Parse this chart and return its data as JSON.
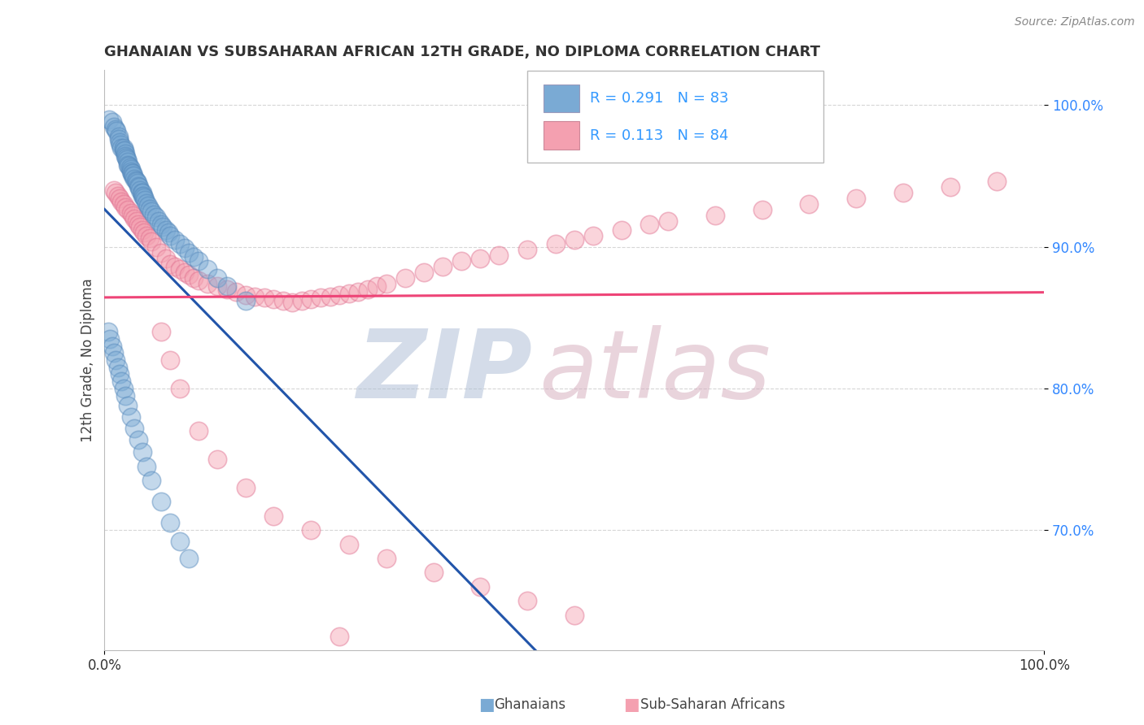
{
  "title": "GHANAIAN VS SUBSAHARAN AFRICAN 12TH GRADE, NO DIPLOMA CORRELATION CHART",
  "source_text": "Source: ZipAtlas.com",
  "ylabel": "12th Grade, No Diploma",
  "xmin": 0.0,
  "xmax": 1.0,
  "ymin": 0.615,
  "ymax": 1.025,
  "ytick_vals": [
    0.7,
    0.8,
    0.9,
    1.0
  ],
  "ytick_labels": [
    "70.0%",
    "80.0%",
    "90.0%",
    "100.0%"
  ],
  "ghanaian_color": "#7aaad4",
  "subsaharan_color": "#f4a0b0",
  "ghanaian_edge": "#5588bb",
  "subsaharan_edge": "#e07090",
  "ghanaian_line_color": "#2255aa",
  "subsaharan_line_color": "#ee4477",
  "legend_color": "#3399ff",
  "watermark_zip_color": "#aabbd4",
  "watermark_atlas_color": "#d4aabb",
  "ghanaian_x": [
    0.005,
    0.008,
    0.01,
    0.012,
    0.013,
    0.015,
    0.015,
    0.016,
    0.017,
    0.018,
    0.02,
    0.02,
    0.021,
    0.022,
    0.022,
    0.023,
    0.024,
    0.025,
    0.025,
    0.026,
    0.027,
    0.028,
    0.028,
    0.029,
    0.03,
    0.03,
    0.031,
    0.032,
    0.033,
    0.034,
    0.035,
    0.036,
    0.037,
    0.038,
    0.039,
    0.04,
    0.04,
    0.041,
    0.042,
    0.043,
    0.045,
    0.046,
    0.048,
    0.05,
    0.052,
    0.055,
    0.058,
    0.06,
    0.062,
    0.065,
    0.068,
    0.07,
    0.075,
    0.08,
    0.085,
    0.09,
    0.095,
    0.1,
    0.11,
    0.12,
    0.13,
    0.15,
    0.004,
    0.006,
    0.008,
    0.01,
    0.012,
    0.014,
    0.016,
    0.018,
    0.02,
    0.022,
    0.025,
    0.028,
    0.032,
    0.036,
    0.04,
    0.045,
    0.05,
    0.06,
    0.07,
    0.08,
    0.09
  ],
  "ghanaian_y": [
    0.99,
    0.988,
    0.985,
    0.983,
    0.982,
    0.978,
    0.976,
    0.974,
    0.972,
    0.97,
    0.968,
    0.97,
    0.968,
    0.966,
    0.964,
    0.963,
    0.962,
    0.96,
    0.958,
    0.957,
    0.956,
    0.955,
    0.953,
    0.952,
    0.95,
    0.952,
    0.95,
    0.948,
    0.947,
    0.946,
    0.945,
    0.943,
    0.942,
    0.94,
    0.938,
    0.936,
    0.938,
    0.936,
    0.935,
    0.933,
    0.931,
    0.929,
    0.927,
    0.925,
    0.923,
    0.921,
    0.918,
    0.916,
    0.914,
    0.912,
    0.91,
    0.908,
    0.905,
    0.902,
    0.899,
    0.896,
    0.893,
    0.89,
    0.884,
    0.878,
    0.872,
    0.862,
    0.84,
    0.835,
    0.83,
    0.825,
    0.82,
    0.815,
    0.81,
    0.805,
    0.8,
    0.795,
    0.788,
    0.78,
    0.772,
    0.764,
    0.755,
    0.745,
    0.735,
    0.72,
    0.705,
    0.692,
    0.68
  ],
  "subsaharan_x": [
    0.01,
    0.012,
    0.014,
    0.016,
    0.018,
    0.02,
    0.022,
    0.025,
    0.028,
    0.03,
    0.032,
    0.034,
    0.036,
    0.038,
    0.04,
    0.042,
    0.045,
    0.048,
    0.05,
    0.055,
    0.06,
    0.065,
    0.07,
    0.075,
    0.08,
    0.085,
    0.09,
    0.095,
    0.1,
    0.11,
    0.12,
    0.13,
    0.14,
    0.15,
    0.16,
    0.17,
    0.18,
    0.19,
    0.2,
    0.21,
    0.22,
    0.23,
    0.24,
    0.25,
    0.26,
    0.27,
    0.28,
    0.29,
    0.3,
    0.32,
    0.34,
    0.36,
    0.38,
    0.4,
    0.42,
    0.45,
    0.48,
    0.5,
    0.52,
    0.55,
    0.58,
    0.6,
    0.65,
    0.7,
    0.75,
    0.8,
    0.85,
    0.9,
    0.95,
    0.06,
    0.07,
    0.08,
    0.1,
    0.12,
    0.15,
    0.18,
    0.22,
    0.26,
    0.3,
    0.35,
    0.4,
    0.45,
    0.5,
    0.25
  ],
  "subsaharan_y": [
    0.94,
    0.938,
    0.936,
    0.934,
    0.932,
    0.93,
    0.928,
    0.926,
    0.924,
    0.922,
    0.92,
    0.918,
    0.916,
    0.914,
    0.912,
    0.91,
    0.908,
    0.906,
    0.904,
    0.9,
    0.896,
    0.892,
    0.888,
    0.886,
    0.884,
    0.882,
    0.88,
    0.878,
    0.876,
    0.874,
    0.872,
    0.87,
    0.868,
    0.866,
    0.865,
    0.864,
    0.863,
    0.862,
    0.861,
    0.862,
    0.863,
    0.864,
    0.865,
    0.866,
    0.867,
    0.868,
    0.87,
    0.872,
    0.874,
    0.878,
    0.882,
    0.886,
    0.89,
    0.892,
    0.894,
    0.898,
    0.902,
    0.905,
    0.908,
    0.912,
    0.916,
    0.918,
    0.922,
    0.926,
    0.93,
    0.934,
    0.938,
    0.942,
    0.946,
    0.84,
    0.82,
    0.8,
    0.77,
    0.75,
    0.73,
    0.71,
    0.7,
    0.69,
    0.68,
    0.67,
    0.66,
    0.65,
    0.64,
    0.625
  ]
}
